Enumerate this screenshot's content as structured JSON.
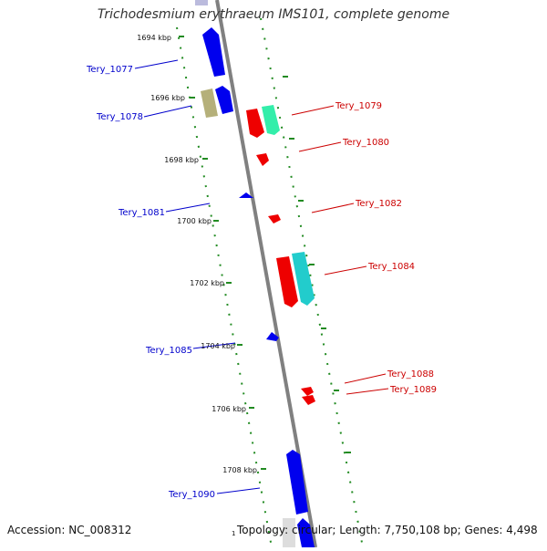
{
  "title": "Trichodesmium erythraeum IMS101, complete genome",
  "footer": {
    "accession": "Accession: NC_008312",
    "origin_marker": "1",
    "topology": "Topology: circular; Length: 7,750,108 bp; Genes: 4,498"
  },
  "colors": {
    "forward_label": "#0000cc",
    "reverse_label": "#cc0000",
    "backbone": "#888888",
    "ticks": "#228B22"
  },
  "scale_labels": [
    "1694 kbp",
    "1696 kbp",
    "1698 kbp",
    "1700 kbp",
    "1702 kbp",
    "1704 kbp",
    "1706 kbp",
    "1708 kbp"
  ],
  "genes": [
    {
      "id": "Tery_1077",
      "strand": "forward",
      "color": "#0000ee"
    },
    {
      "id": "Tery_1078",
      "strand": "forward",
      "color": "#b5b07a"
    },
    {
      "id": "Tery_1078b",
      "strand": "forward",
      "color": "#0000ee"
    },
    {
      "id": "Tery_1079",
      "strand": "reverse",
      "color": "#ee0000"
    },
    {
      "id": "Tery_1079b",
      "strand": "reverse",
      "color": "#33eeaa"
    },
    {
      "id": "Tery_1080",
      "strand": "reverse",
      "color": "#ee0000"
    },
    {
      "id": "Tery_1081",
      "strand": "forward",
      "color": "#0000ee"
    },
    {
      "id": "Tery_1082",
      "strand": "reverse",
      "color": "#ee0000"
    },
    {
      "id": "Tery_1084",
      "strand": "reverse",
      "color": "#ee0000"
    },
    {
      "id": "Tery_1084b",
      "strand": "reverse",
      "color": "#22cccc"
    },
    {
      "id": "Tery_1085",
      "strand": "forward",
      "color": "#0000ee"
    },
    {
      "id": "Tery_1088",
      "strand": "reverse",
      "color": "#ee0000"
    },
    {
      "id": "Tery_1089",
      "strand": "reverse",
      "color": "#ee0000"
    },
    {
      "id": "Tery_1090",
      "strand": "forward",
      "color": "#0000ee"
    }
  ],
  "labels": {
    "Tery_1077": "Tery_1077",
    "Tery_1078": "Tery_1078",
    "Tery_1079": "Tery_1079",
    "Tery_1080": "Tery_1080",
    "Tery_1081": "Tery_1081",
    "Tery_1082": "Tery_1082",
    "Tery_1084": "Tery_1084",
    "Tery_1085": "Tery_1085",
    "Tery_1088": "Tery_1088",
    "Tery_1089": "Tery_1089",
    "Tery_1090": "Tery_1090"
  }
}
